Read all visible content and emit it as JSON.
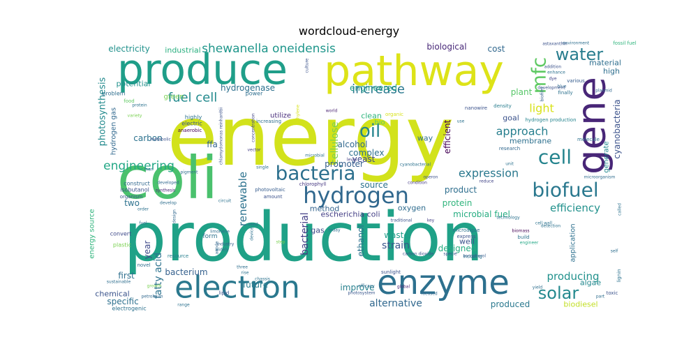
{
  "title": "wordcloud-energy",
  "words": [
    {
      "text": "energy",
      "color": "#d2e21b"
    },
    {
      "text": "production",
      "color": "#1fa187"
    },
    {
      "text": "coli",
      "color": "#4ac16d"
    },
    {
      "text": "pathway",
      "color": "#dde318"
    },
    {
      "text": "produce",
      "color": "#1f9e89"
    },
    {
      "text": "gene",
      "color": "#482677"
    },
    {
      "text": "enzyme",
      "color": "#2d708e"
    },
    {
      "text": "electron",
      "color": "#2a788e"
    },
    {
      "text": "bacteria",
      "color": "#2d708e"
    },
    {
      "text": "hydrogen",
      "color": "#31688e"
    },
    {
      "text": "biofuel",
      "color": "#2a788e"
    },
    {
      "text": "cell",
      "color": "#25848e"
    },
    {
      "text": "water",
      "color": "#287d8e"
    },
    {
      "text": "mfc",
      "color": "#5ec962"
    },
    {
      "text": "oil",
      "color": "#25848e"
    },
    {
      "text": "solar",
      "color": "#23898e"
    },
    {
      "text": "fuel cell",
      "color": "#238a8d"
    },
    {
      "text": "increase",
      "color": "#2a788e"
    },
    {
      "text": "light",
      "color": "#d8e219"
    },
    {
      "text": "shewanella oneidensis",
      "color": "#1f968b"
    },
    {
      "text": "engineering",
      "color": "#22a785"
    },
    {
      "text": "expression",
      "color": "#2a788e"
    },
    {
      "text": "efficiency",
      "color": "#21918c"
    },
    {
      "text": "approach",
      "color": "#277f8e"
    },
    {
      "text": "producing",
      "color": "#21918c"
    },
    {
      "text": "alternative",
      "color": "#31688e"
    },
    {
      "text": "strain",
      "color": "#39568c"
    },
    {
      "text": "bacterial",
      "color": "#433e85"
    },
    {
      "text": "renewable",
      "color": "#2c728e"
    },
    {
      "text": "cellulose",
      "color": "#7ad151"
    },
    {
      "text": "photosynthesis",
      "color": "#238a8d"
    },
    {
      "text": "electricity",
      "color": "#21918c"
    },
    {
      "text": "carbon",
      "color": "#2c728e"
    },
    {
      "text": "hydrogenase",
      "color": "#2d708e"
    },
    {
      "text": "engineered",
      "color": "#1f9a8a"
    },
    {
      "text": "product",
      "color": "#2e6e8e"
    },
    {
      "text": "source",
      "color": "#2c728e"
    },
    {
      "text": "cyanobacteria",
      "color": "#3b528b"
    },
    {
      "text": "fatty acid",
      "color": "#2c728e"
    },
    {
      "text": "bacterium",
      "color": "#35608d"
    },
    {
      "text": "improve",
      "color": "#27808e"
    },
    {
      "text": "future",
      "color": "#287d8e"
    },
    {
      "text": "plant",
      "color": "#56c667"
    },
    {
      "text": "alcohol",
      "color": "#31688e"
    },
    {
      "text": "protein",
      "color": "#2fb47c"
    },
    {
      "text": "microbial fuel",
      "color": "#26ad81"
    },
    {
      "text": "ethanol",
      "color": "#2c728e"
    },
    {
      "text": "waste",
      "color": "#1f9e89"
    },
    {
      "text": "designed",
      "color": "#26ad81"
    },
    {
      "text": "produced",
      "color": "#2a788e"
    },
    {
      "text": "biodiesel",
      "color": "#c2df23"
    },
    {
      "text": "algae",
      "color": "#23898e"
    },
    {
      "text": "goal",
      "color": "#3b528b"
    },
    {
      "text": "efficient",
      "color": "#440154"
    },
    {
      "text": "complex",
      "color": "#2d708e"
    },
    {
      "text": "yeast",
      "color": "#3e4989"
    },
    {
      "text": "promoter",
      "color": "#355f8d"
    },
    {
      "text": "membrane",
      "color": "#2d708e"
    },
    {
      "text": "clean",
      "color": "#2fb47c"
    },
    {
      "text": "bio",
      "color": "#63cb5f"
    },
    {
      "text": "ffa",
      "color": "#33638d"
    },
    {
      "text": "method",
      "color": "#33638d"
    },
    {
      "text": "escherichia coli",
      "color": "#433e85"
    },
    {
      "text": "oxygen",
      "color": "#2f6c8e"
    },
    {
      "text": "gas",
      "color": "#3e4a89"
    },
    {
      "text": "well",
      "color": "#3b528b"
    },
    {
      "text": "first",
      "color": "#2e6f8e"
    },
    {
      "text": "year",
      "color": "#3e4989"
    },
    {
      "text": "two",
      "color": "#2c718e"
    },
    {
      "text": "specific",
      "color": "#2d708e"
    },
    {
      "text": "chemical",
      "color": "#3a538b"
    },
    {
      "text": "cost",
      "color": "#31688e"
    },
    {
      "text": "biological",
      "color": "#482878"
    },
    {
      "text": "industrial",
      "color": "#29af7f"
    },
    {
      "text": "potential",
      "color": "#21918c"
    },
    {
      "text": "hydrogen gas",
      "color": "#31688e"
    },
    {
      "text": "way",
      "color": "#2d708e"
    },
    {
      "text": "high",
      "color": "#2e6e8e"
    },
    {
      "text": "material",
      "color": "#2e6e8e"
    },
    {
      "text": "energy source",
      "color": "#2fb47c"
    },
    {
      "text": "generate",
      "color": "#23898e"
    },
    {
      "text": "application",
      "color": "#2d708e"
    },
    {
      "text": "green",
      "color": "#7ad151"
    },
    {
      "text": "utilize",
      "color": "#472c7a"
    },
    {
      "text": "problem",
      "color": "#2e6e8e"
    },
    {
      "text": "food",
      "color": "#5ec962"
    },
    {
      "text": "power",
      "color": "#2e6e8e"
    },
    {
      "text": "highly",
      "color": "#2c728e"
    },
    {
      "text": "electric",
      "color": "#39568c"
    },
    {
      "text": "anaerobic",
      "color": "#440154"
    },
    {
      "text": "world",
      "color": "#481f70"
    },
    {
      "text": "organic",
      "color": "#d8e219"
    },
    {
      "text": "nanowire",
      "color": "#3b528b"
    },
    {
      "text": "density",
      "color": "#287d8e"
    },
    {
      "text": "hydrogen production",
      "color": "#25848e"
    },
    {
      "text": "molecule",
      "color": "#2c718e"
    },
    {
      "text": "research",
      "color": "#31688e"
    },
    {
      "text": "increasing",
      "color": "#2e6e8e"
    },
    {
      "text": "microorganism",
      "color": "#2f6c8e"
    },
    {
      "text": "construct",
      "color": "#31688e"
    },
    {
      "text": "isobutanol",
      "color": "#3b528b"
    },
    {
      "text": "synthesis",
      "color": "#482475"
    },
    {
      "text": "organism",
      "color": "#39568c"
    },
    {
      "text": "photovoltaic",
      "color": "#365c8d"
    },
    {
      "text": "chlorophyll",
      "color": "#453781"
    },
    {
      "text": "condition",
      "color": "#443983"
    },
    {
      "text": "amount",
      "color": "#3b528b"
    },
    {
      "text": "develop",
      "color": "#2e6e8e"
    },
    {
      "text": "developed",
      "color": "#31688e"
    },
    {
      "text": "convert",
      "color": "#3e4989"
    },
    {
      "text": "form",
      "color": "#2c728e"
    },
    {
      "text": "limonene",
      "color": "#2e6e8e"
    },
    {
      "text": "industry",
      "color": "#35608d"
    },
    {
      "text": "widely",
      "color": "#2d708e"
    },
    {
      "text": "resource",
      "color": "#277f8e"
    },
    {
      "text": "novel",
      "color": "#2e6e8e"
    },
    {
      "text": "plastic",
      "color": "#7ad151"
    },
    {
      "text": "microalgae",
      "color": "#2c728e"
    },
    {
      "text": "express",
      "color": "#3b528b"
    },
    {
      "text": "specie",
      "color": "#39568c"
    },
    {
      "text": "tocopherol",
      "color": "#365c8d"
    },
    {
      "text": "build",
      "color": "#2c728e"
    },
    {
      "text": "engineer",
      "color": "#22a785"
    },
    {
      "text": "carbon dioxide",
      "color": "#3b528b"
    },
    {
      "text": "including",
      "color": "#2c728e"
    },
    {
      "text": "technology",
      "color": "#2c728e"
    },
    {
      "text": "biomass",
      "color": "#440154"
    },
    {
      "text": "development",
      "color": "#3b528b"
    },
    {
      "text": "environment",
      "color": "#2e6e8e"
    },
    {
      "text": "fossil fuel",
      "color": "#2fb47c"
    },
    {
      "text": "addition",
      "color": "#3b528b"
    },
    {
      "text": "enhance",
      "color": "#2c718e"
    },
    {
      "text": "finally",
      "color": "#2c718e"
    },
    {
      "text": "culture",
      "color": "#3b528b"
    },
    {
      "text": "dye",
      "color": "#414487"
    },
    {
      "text": "blue",
      "color": "#31688e"
    },
    {
      "text": "biofilm",
      "color": "#35608d"
    },
    {
      "text": "various",
      "color": "#365c8d"
    },
    {
      "text": "lignin",
      "color": "#2c728e"
    },
    {
      "text": "toxic",
      "color": "#3b528b"
    },
    {
      "text": "sunlight",
      "color": "#3b528b"
    },
    {
      "text": "global",
      "color": "#482475"
    },
    {
      "text": "lipid",
      "color": "#3b528b"
    },
    {
      "text": "petroleum",
      "color": "#31688e"
    },
    {
      "text": "electrogenic",
      "color": "#2c718e"
    },
    {
      "text": "sustainable",
      "color": "#2e6e8e"
    },
    {
      "text": "growth",
      "color": "#7ad151"
    },
    {
      "text": "photosystem",
      "color": "#39568c"
    },
    {
      "text": "focused",
      "color": "#31688e"
    },
    {
      "text": "yield",
      "color": "#2e6e8e"
    },
    {
      "text": "part",
      "color": "#2e6e8e"
    },
    {
      "text": "self",
      "color": "#2e6e8e"
    },
    {
      "text": "ethylene",
      "color": "#d8e219"
    },
    {
      "text": "anode",
      "color": "#31688e"
    },
    {
      "text": "vector",
      "color": "#433e85"
    },
    {
      "text": "level",
      "color": "#433e85"
    },
    {
      "text": "single",
      "color": "#2c718e"
    },
    {
      "text": "today",
      "color": "#2e6e8e"
    },
    {
      "text": "operon",
      "color": "#3b528b"
    },
    {
      "text": "reduce",
      "color": "#414487"
    },
    {
      "text": "key",
      "color": "#433e85"
    },
    {
      "text": "traditional",
      "color": "#3b528b"
    },
    {
      "text": "need",
      "color": "#2c728e"
    },
    {
      "text": "device",
      "color": "#2d708e"
    },
    {
      "text": "circuit",
      "color": "#2c718e"
    },
    {
      "text": "design",
      "color": "#31688e"
    },
    {
      "text": "order",
      "color": "#2c718e"
    },
    {
      "text": "fuel",
      "color": "#2c718e"
    },
    {
      "text": "pigment",
      "color": "#2e6e8e"
    },
    {
      "text": "metabolic",
      "color": "#3b528b"
    },
    {
      "text": "concentration",
      "color": "#414487"
    },
    {
      "text": "chlamydomonas reinhardtii",
      "color": "#3b528b"
    },
    {
      "text": "variety",
      "color": "#7ad151"
    },
    {
      "text": "called",
      "color": "#2c728e"
    },
    {
      "text": "plasmid",
      "color": "#31688e"
    },
    {
      "text": "detection",
      "color": "#2c728e"
    },
    {
      "text": "cell wall",
      "color": "#2c728e"
    },
    {
      "text": "range",
      "color": "#2c718e"
    },
    {
      "text": "three",
      "color": "#2e6e8e"
    },
    {
      "text": "chassis",
      "color": "#2c728e"
    },
    {
      "text": "efficacy",
      "color": "#2e6e8e"
    },
    {
      "text": "microbial",
      "color": "#2c718e"
    },
    {
      "text": "step",
      "color": "#7ad151"
    },
    {
      "text": "rise",
      "color": "#2c718e"
    },
    {
      "text": "protein",
      "color": "#2c718e"
    },
    {
      "text": "man",
      "color": "#2e6e8e"
    },
    {
      "text": "astaxanthin",
      "color": "#3b528b"
    },
    {
      "text": "cyanobacterial",
      "color": "#2c718e"
    },
    {
      "text": "unit",
      "color": "#2c718e"
    },
    {
      "text": "use",
      "color": "#2c718e"
    }
  ]
}
